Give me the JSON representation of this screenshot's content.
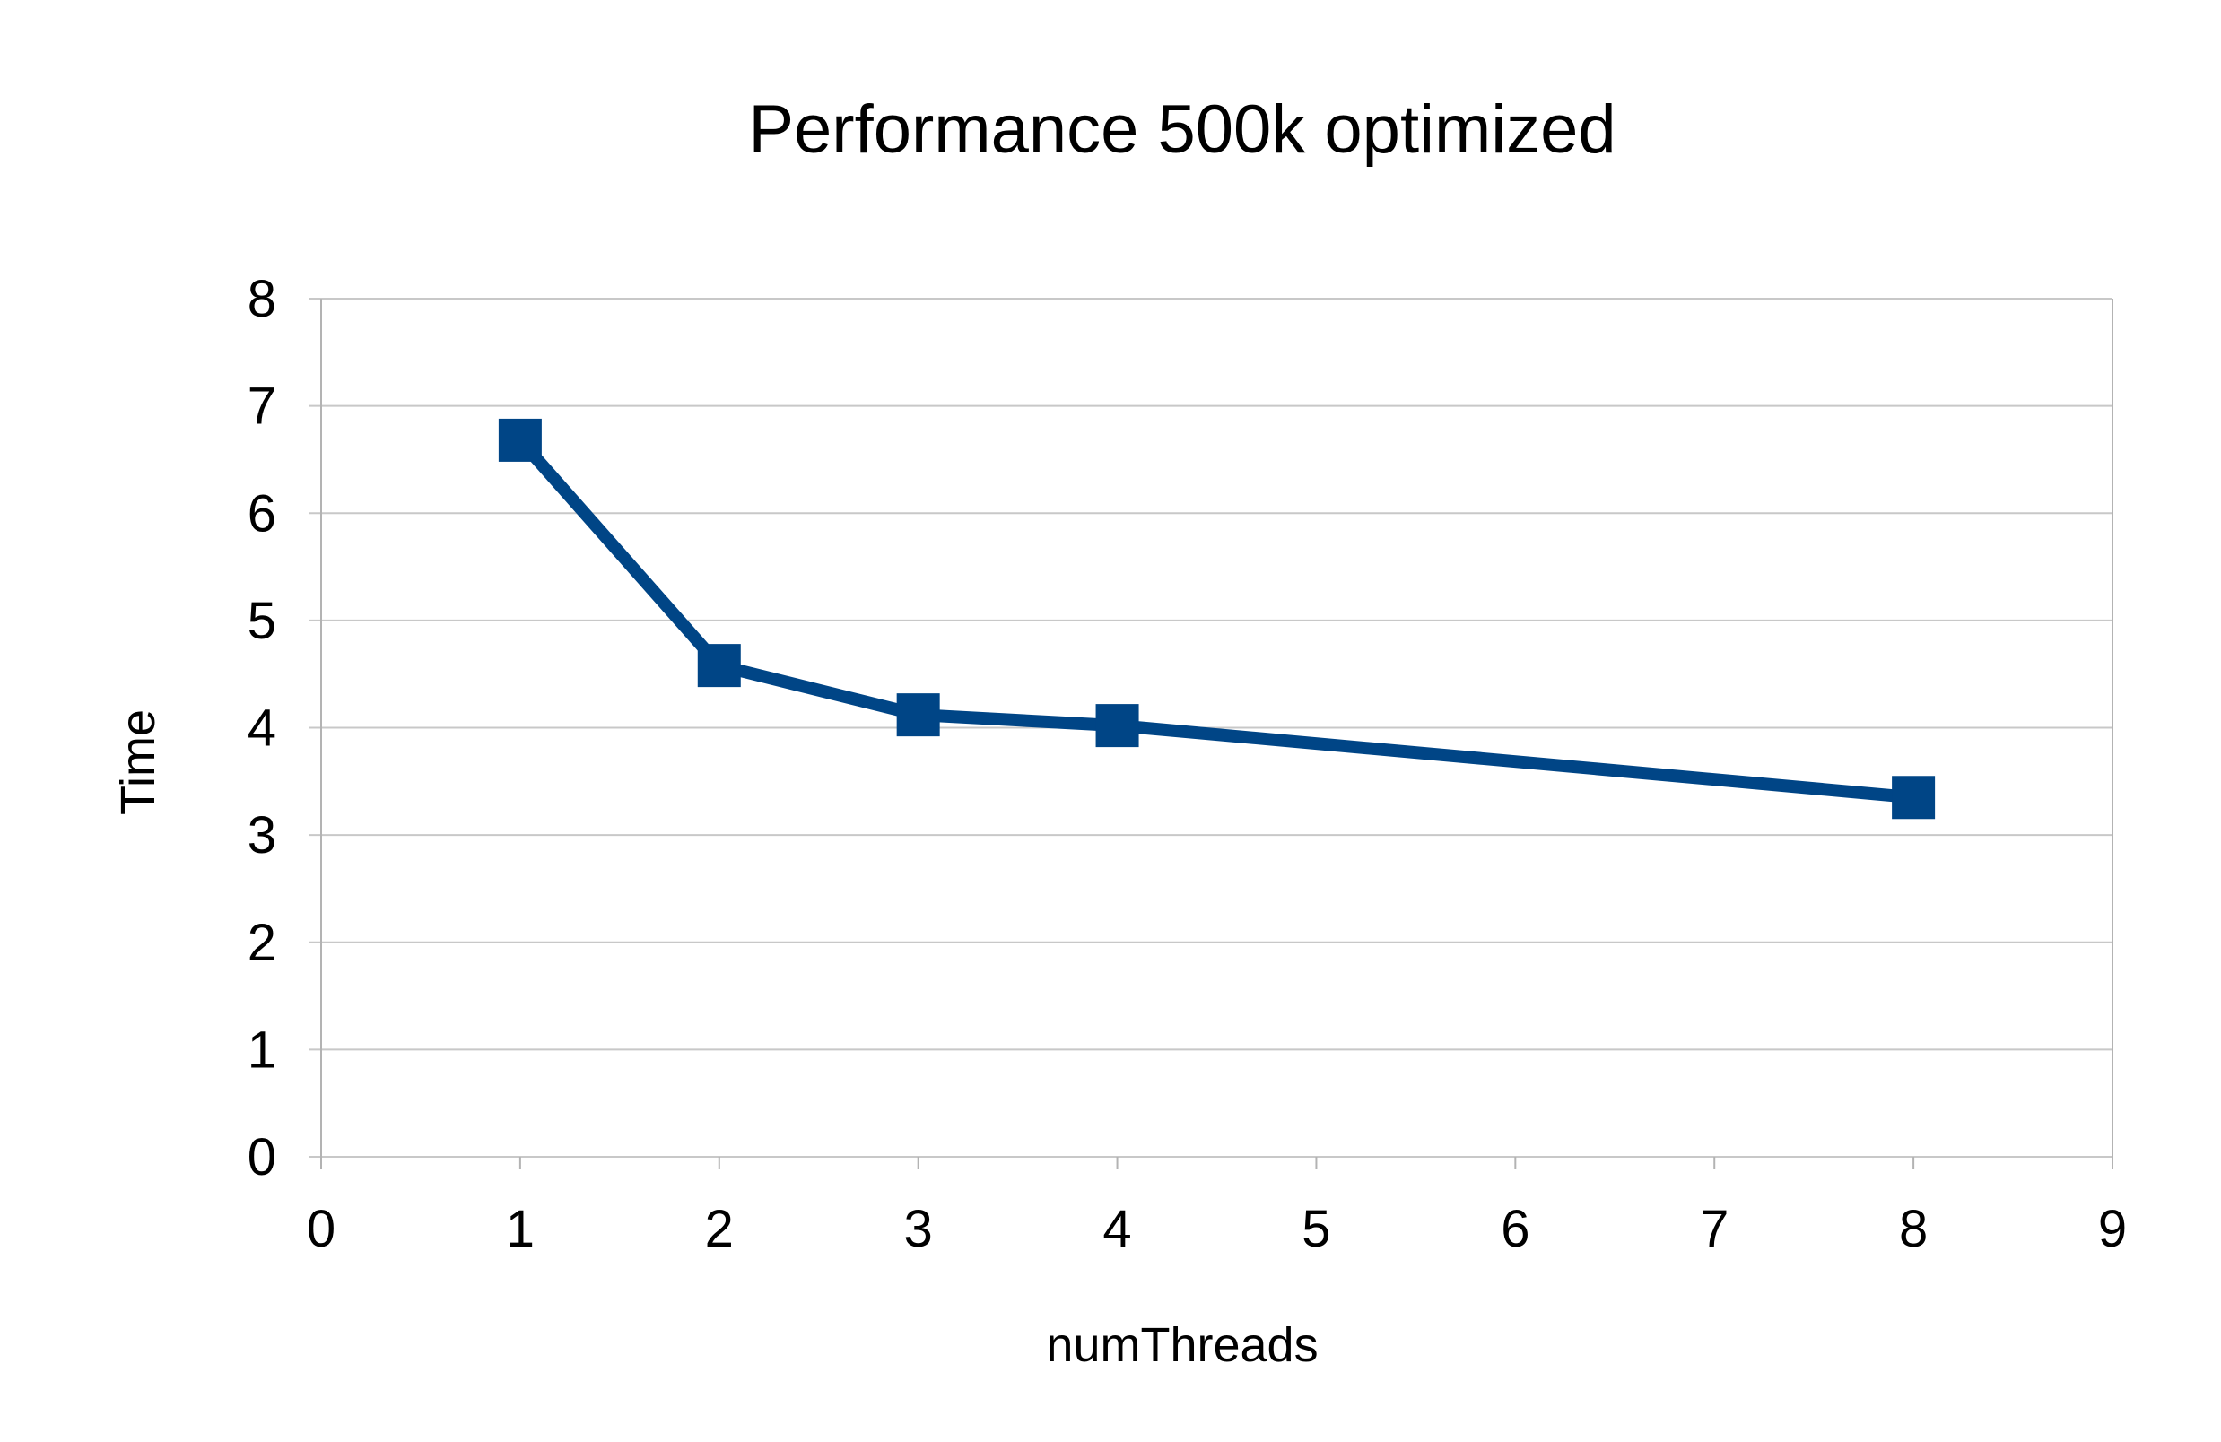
{
  "chart_data": {
    "type": "scatter",
    "title": "Performance 500k optimized",
    "xlabel": "numThreads",
    "ylabel": "Time",
    "xlim": [
      0,
      9
    ],
    "ylim": [
      0,
      8
    ],
    "xticks": [
      "0",
      "1",
      "2",
      "3",
      "4",
      "5",
      "6",
      "7",
      "8",
      "9"
    ],
    "yticks": [
      "0",
      "1",
      "2",
      "3",
      "4",
      "5",
      "6",
      "7",
      "8"
    ],
    "grid": true,
    "legend": "none",
    "series": [
      {
        "color": "#004586",
        "marker": "square",
        "lines": true,
        "points": [
          {
            "x": 1,
            "y": 6.68
          },
          {
            "x": 2,
            "y": 4.58
          },
          {
            "x": 3,
            "y": 4.12
          },
          {
            "x": 4,
            "y": 4.02
          },
          {
            "x": 8,
            "y": 3.35
          }
        ]
      }
    ]
  }
}
